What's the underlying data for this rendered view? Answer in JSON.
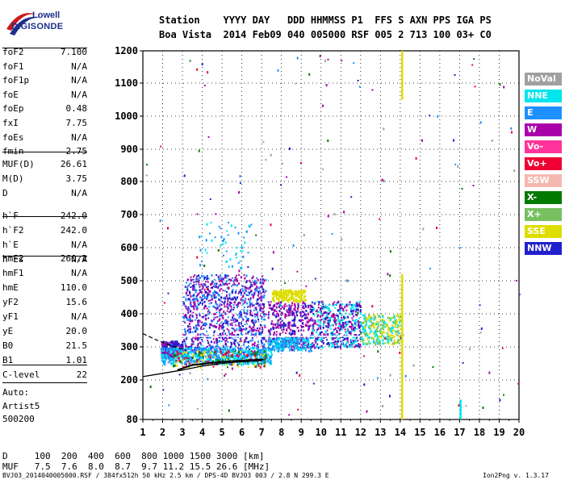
{
  "logo": {
    "line1": "Lowell",
    "line2": "DIGISONDE"
  },
  "header": {
    "row1": "Station    YYYY DAY   DDD HHMMSS P1  FFS S AXN PPS IGA PS",
    "row2": "Boa Vista  2014 Feb09 040 005000 RSF 005 2 713 100 03+ C0"
  },
  "params": [
    {
      "name": "foF2",
      "value": "7.100"
    },
    {
      "name": "foF1",
      "value": "N/A"
    },
    {
      "name": "foF1p",
      "value": "N/A"
    },
    {
      "name": "foE",
      "value": "N/A"
    },
    {
      "name": "foEp",
      "value": "0.48"
    },
    {
      "name": "fxI",
      "value": "7.75"
    },
    {
      "name": "foEs",
      "value": "N/A"
    },
    {
      "name": "fmin",
      "value": "2.75"
    },
    {
      "name": "MUF(D)",
      "value": "26.61"
    },
    {
      "name": "M(D)",
      "value": "3.75"
    },
    {
      "name": "D",
      "value": "N/A"
    },
    {
      "name": "h`F",
      "value": "242.0"
    },
    {
      "name": "h`F2",
      "value": "242.0"
    },
    {
      "name": "h`E",
      "value": "N/A"
    },
    {
      "name": "h`Es",
      "value": "N/A"
    },
    {
      "name": "hmF2",
      "value": "260.2"
    },
    {
      "name": "hmF1",
      "value": "N/A"
    },
    {
      "name": "hmE",
      "value": "110.0"
    },
    {
      "name": "yF2",
      "value": "15.6"
    },
    {
      "name": "yF1",
      "value": "N/A"
    },
    {
      "name": "yE",
      "value": "20.0"
    },
    {
      "name": "B0",
      "value": "21.5"
    },
    {
      "name": "B1",
      "value": "1.01"
    },
    {
      "name": "C-level",
      "value": "22"
    }
  ],
  "auto": {
    "line1": "Auto:",
    "line2": "Artist5",
    "line3": "500200"
  },
  "legend": [
    {
      "label": "NoVal",
      "color": "#a0a0a0"
    },
    {
      "label": "NNE",
      "color": "#00e5ee"
    },
    {
      "label": "E",
      "color": "#1e90ff"
    },
    {
      "label": "W",
      "color": "#aa00aa"
    },
    {
      "label": "Vo-",
      "color": "#ff3399"
    },
    {
      "label": "Vo+",
      "color": "#ee0033"
    },
    {
      "label": "SSW",
      "color": "#f4b8b0"
    },
    {
      "label": "X-",
      "color": "#007a00"
    },
    {
      "label": "X+",
      "color": "#77c060"
    },
    {
      "label": "SSE",
      "color": "#dddd00"
    },
    {
      "label": "NNW",
      "color": "#2020cc"
    }
  ],
  "footer": {
    "d_row": "D     100  200  400  600  800 1000 1500 3000 [km]",
    "muf_row": "MUF   7.5  7.6  8.0  8.7  9.7 11.2 15.5 26.6 [MHz]",
    "file_info": "BVJ03_2014040005000.RSF / 384fx512h 50 kHz 2.5 km / DPS-4D BVJ03 003 / 2.8 N 299.3 E",
    "version": "Ion2Png v. 1.3.17"
  },
  "chart_data": {
    "type": "scatter",
    "x_ticks": [
      "1",
      "2",
      "3",
      "4",
      "5",
      "6",
      "7",
      "8",
      "9",
      "10",
      "11",
      "12",
      "13",
      "14",
      "15",
      "16",
      "17",
      "18",
      "19",
      "20"
    ],
    "y_ticks": [
      "80",
      "200",
      "300",
      "400",
      "500",
      "600",
      "700",
      "800",
      "900",
      "1000",
      "1100",
      "1200"
    ],
    "xlim": [
      1,
      20
    ],
    "ylim": [
      80,
      1200
    ],
    "grid": true,
    "legend_position": "right",
    "traces": {
      "profile": [
        [
          2.75,
          230
        ],
        [
          3.5,
          245
        ],
        [
          4.5,
          252
        ],
        [
          5.5,
          257
        ],
        [
          6.5,
          260
        ],
        [
          7.1,
          262
        ]
      ],
      "lower": [
        [
          1,
          210
        ],
        [
          2,
          220
        ],
        [
          3,
          230
        ],
        [
          4,
          242
        ],
        [
          5,
          250
        ],
        [
          6,
          255
        ],
        [
          7,
          258
        ]
      ],
      "dashed": [
        [
          1,
          340
        ],
        [
          1.8,
          318
        ],
        [
          2.6,
          300
        ],
        [
          3.2,
          290
        ]
      ],
      "white_line": [
        [
          3,
          332
        ],
        [
          12,
          332
        ]
      ]
    },
    "clusters": [
      {
        "x": [
          1.9,
          3.0
        ],
        "y": [
          270,
          320
        ],
        "colors": [
          "#aa00aa",
          "#2020cc"
        ],
        "n": 260
      },
      {
        "x": [
          3.0,
          7.2
        ],
        "y": [
          270,
          520
        ],
        "colors": [
          "#aa00aa",
          "#2020cc",
          "#1e90ff"
        ],
        "n": 1100
      },
      {
        "x": [
          1.9,
          7.5
        ],
        "y": [
          250,
          300
        ],
        "colors": [
          "#00e5ee",
          "#1e90ff"
        ],
        "n": 650
      },
      {
        "x": [
          2.5,
          7.2
        ],
        "y": [
          240,
          290
        ],
        "colors": [
          "#ee0033",
          "#007a00",
          "#dddd00"
        ],
        "n": 160
      },
      {
        "x": [
          7.3,
          9.5
        ],
        "y": [
          300,
          440
        ],
        "colors": [
          "#aa00aa",
          "#2020cc"
        ],
        "n": 350
      },
      {
        "x": [
          7.3,
          9.5
        ],
        "y": [
          290,
          330
        ],
        "colors": [
          "#00e5ee",
          "#1e90ff"
        ],
        "n": 220
      },
      {
        "x": [
          7.5,
          9.2
        ],
        "y": [
          440,
          475
        ],
        "colors": [
          "#dddd00"
        ],
        "n": 200
      },
      {
        "x": [
          9.5,
          12.0
        ],
        "y": [
          300,
          440
        ],
        "colors": [
          "#aa00aa",
          "#2020cc",
          "#00e5ee"
        ],
        "n": 500
      },
      {
        "x": [
          12.0,
          14.0
        ],
        "y": [
          310,
          400
        ],
        "colors": [
          "#dddd00",
          "#00e5ee",
          "#77c060"
        ],
        "n": 320
      },
      {
        "x": [
          3.8,
          6.5
        ],
        "y": [
          540,
          680
        ],
        "colors": [
          "#1e90ff",
          "#00e5ee"
        ],
        "n": 55
      },
      {
        "x": [
          1.0,
          20.0
        ],
        "y": [
          80,
          1200
        ],
        "colors": [
          "#aa00aa",
          "#2020cc",
          "#ee0033",
          "#007a00",
          "#1e90ff",
          "#a0a0a0"
        ],
        "n": 170
      }
    ],
    "vertical_streaks": [
      {
        "x": 14.1,
        "y": [
          80,
          520
        ],
        "color": "#dddd00"
      },
      {
        "x": 14.1,
        "y": [
          1050,
          1200
        ],
        "color": "#dddd00"
      },
      {
        "x": 17.05,
        "y": [
          80,
          140
        ],
        "color": "#00e5ee"
      }
    ]
  }
}
